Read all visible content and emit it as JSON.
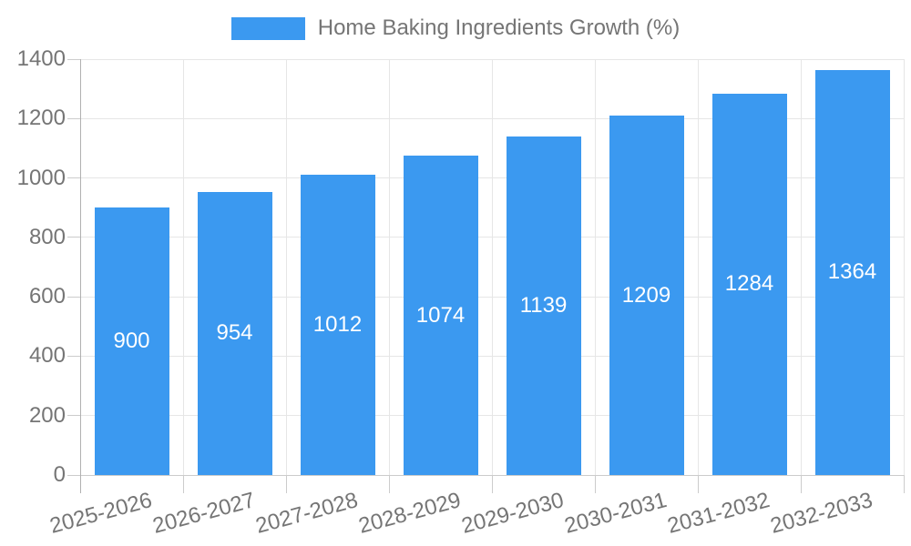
{
  "legend": {
    "label": "Home Baking Ingredients Growth (%)",
    "swatch_color": "#3b99f0"
  },
  "chart_data": {
    "type": "bar",
    "title": "Home Baking Ingredients Growth (%)",
    "categories": [
      "2025-2026",
      "2026-2027",
      "2027-2028",
      "2028-2029",
      "2029-2030",
      "2030-2031",
      "2031-2032",
      "2032-2033"
    ],
    "values": [
      900,
      954,
      1012,
      1074,
      1139,
      1209,
      1284,
      1364
    ],
    "value_labels": [
      "900",
      "954",
      "1012",
      "1074",
      "1139",
      "1209",
      "1284",
      "1364"
    ],
    "xlabel": "",
    "ylabel": "",
    "ylim": [
      0,
      1400
    ],
    "yticks": [
      0,
      200,
      400,
      600,
      800,
      1000,
      1200,
      1400
    ],
    "ytick_labels": [
      "0",
      "200",
      "400",
      "600",
      "800",
      "1000",
      "1200",
      "1400"
    ],
    "x_label_rotation_deg": -15,
    "grid": true,
    "legend_position": "top",
    "bar_color": "#3b99f0",
    "value_label_color": "#ffffff",
    "axis_text_color": "#757575",
    "grid_color": "#e6e6e6",
    "baseline_color": "#cccccc",
    "axis_line_color": "#b0b0b0"
  }
}
